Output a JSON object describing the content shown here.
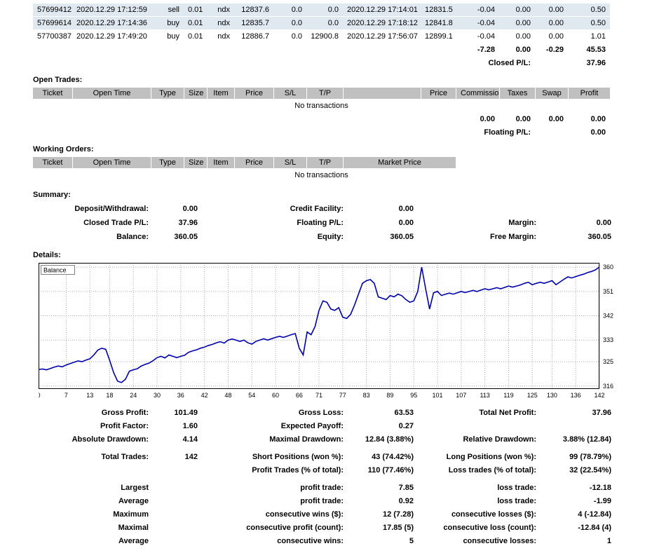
{
  "colors": {
    "header_bg": "#c0c0c0",
    "row_shade": "#e0e8f0",
    "balance_line": "#0000B0",
    "grid_line": "#aaaaaa"
  },
  "closed_trades": {
    "rows": [
      {
        "ticket": "57699412",
        "open_time": "2020.12.29 17:12:59",
        "type": "sell",
        "size": "0.01",
        "item": "ndx",
        "price": "12837.6",
        "sl": "0.0",
        "tp": "0.0",
        "close_time": "2020.12.29 17:14:01",
        "close_price": "12831.5",
        "commission": "-0.04",
        "taxes": "0.00",
        "swap": "0.00",
        "profit": "0.50"
      },
      {
        "ticket": "57699614",
        "open_time": "2020.12.29 17:14:36",
        "type": "buy",
        "size": "0.01",
        "item": "ndx",
        "price": "12835.7",
        "sl": "0.0",
        "tp": "0.0",
        "close_time": "2020.12.29 17:18:12",
        "close_price": "12841.8",
        "commission": "-0.04",
        "taxes": "0.00",
        "swap": "0.00",
        "profit": "0.50"
      },
      {
        "ticket": "57700387",
        "open_time": "2020.12.29 17:49:20",
        "type": "buy",
        "size": "0.01",
        "item": "ndx",
        "price": "12886.7",
        "sl": "0.0",
        "tp": "12900.8",
        "close_time": "2020.12.29 17:56:07",
        "close_price": "12899.1",
        "commission": "-0.04",
        "taxes": "0.00",
        "swap": "0.00",
        "profit": "1.01"
      }
    ],
    "totals": {
      "commission": "-7.28",
      "taxes": "0.00",
      "swap": "-0.29",
      "profit": "45.53"
    },
    "closed_pl_label": "Closed P/L:",
    "closed_pl_value": "37.96"
  },
  "open_trades": {
    "title": "Open Trades:",
    "headers": [
      "Ticket",
      "Open Time",
      "Type",
      "Size",
      "Item",
      "Price",
      "S/L",
      "T/P",
      "",
      "Price",
      "Commission",
      "Taxes",
      "Swap",
      "Profit"
    ],
    "empty_text": "No transactions",
    "totals": {
      "commission": "0.00",
      "taxes": "0.00",
      "swap": "0.00",
      "profit": "0.00"
    },
    "floating_pl_label": "Floating P/L:",
    "floating_pl_value": "0.00"
  },
  "working_orders": {
    "title": "Working Orders:",
    "headers": [
      "Ticket",
      "Open Time",
      "Type",
      "Size",
      "Item",
      "Price",
      "S/L",
      "T/P",
      "Market Price"
    ],
    "empty_text": "No transactions"
  },
  "summary": {
    "title": "Summary:",
    "rows": [
      {
        "c1": {
          "label": "Deposit/Withdrawal:",
          "value": "0.00"
        },
        "c2": {
          "label": "Credit Facility:",
          "value": "0.00"
        }
      },
      {
        "c1": {
          "label": "Closed Trade P/L:",
          "value": "37.96"
        },
        "c2": {
          "label": "Floating P/L:",
          "value": "0.00"
        },
        "c3": {
          "label": "Margin:",
          "value": "0.00"
        }
      },
      {
        "c1": {
          "label": "Balance:",
          "value": "360.05"
        },
        "c2": {
          "label": "Equity:",
          "value": "360.05"
        },
        "c3": {
          "label": "Free Margin:",
          "value": "360.05"
        }
      }
    ]
  },
  "details": {
    "title": "Details:"
  },
  "chart_data": {
    "type": "line",
    "series_label": "Balance",
    "title": "",
    "xlabel": "",
    "ylabel": "",
    "grid": true,
    "y_axis_side": "right",
    "x_ticks": [
      0,
      7,
      13,
      18,
      24,
      30,
      36,
      42,
      48,
      54,
      60,
      66,
      71,
      77,
      83,
      89,
      95,
      101,
      107,
      113,
      119,
      125,
      130,
      136,
      142
    ],
    "y_ticks": [
      360,
      351,
      342,
      333,
      325,
      316
    ],
    "xlim": [
      0,
      142
    ],
    "ylim": [
      314.9,
      361.6
    ],
    "line_color": "#0000B0",
    "values": [
      322.1,
      322.3,
      322.0,
      322.5,
      323.0,
      323.4,
      323.1,
      323.8,
      324.3,
      324.8,
      325.3,
      325.0,
      325.6,
      326.1,
      327.5,
      329.3,
      330.0,
      329.6,
      325.5,
      321.0,
      317.8,
      317.3,
      318.5,
      321.5,
      322.0,
      322.4,
      323.4,
      324.0,
      324.5,
      325.4,
      326.5,
      327.0,
      326.4,
      327.5,
      327.0,
      326.5,
      327.0,
      327.4,
      328.5,
      329.0,
      329.4,
      330.0,
      330.4,
      331.0,
      331.4,
      332.0,
      332.4,
      331.9,
      333.0,
      333.4,
      333.0,
      332.5,
      333.0,
      332.0,
      331.5,
      332.5,
      333.0,
      333.5,
      333.0,
      333.5,
      334.0,
      334.4,
      334.0,
      334.5,
      335.0,
      335.4,
      330.0,
      327.5,
      336.0,
      335.0,
      338.0,
      344.0,
      347.5,
      347.0,
      344.5,
      344.0,
      345.0,
      341.5,
      341.0,
      342.5,
      346.0,
      350.0,
      354.0,
      355.0,
      355.4,
      354.0,
      349.0,
      348.5,
      348.0,
      349.5,
      349.0,
      350.0,
      349.4,
      348.0,
      347.0,
      347.5,
      351.0,
      360.0,
      352.0,
      344.5,
      350.5,
      351.0,
      349.5,
      350.0,
      350.4,
      350.0,
      350.5,
      351.0,
      350.6,
      351.0,
      351.4,
      351.0,
      351.5,
      352.0,
      351.6,
      352.0,
      352.4,
      352.0,
      352.5,
      353.0,
      352.6,
      353.0,
      353.4,
      354.0,
      354.4,
      353.5,
      354.0,
      354.4,
      354.0,
      354.5,
      355.0,
      353.5,
      354.5,
      355.5,
      356.4,
      356.0,
      356.5,
      357.0,
      357.4,
      358.0,
      358.4,
      359.0,
      360.05
    ]
  },
  "stats": {
    "rows": [
      {
        "c1": {
          "label": "Gross Profit:",
          "value": "101.49"
        },
        "c2": {
          "label": "Gross Loss:",
          "value": "63.53"
        },
        "c3": {
          "label": "Total Net Profit:",
          "value": "37.96"
        }
      },
      {
        "c1": {
          "label": "Profit Factor:",
          "value": "1.60"
        },
        "c2": {
          "label": "Expected Payoff:",
          "value": "0.27"
        }
      },
      {
        "c1": {
          "label": "Absolute Drawdown:",
          "value": "4.14"
        },
        "c2": {
          "label": "Maximal Drawdown:",
          "value": "12.84 (3.88%)"
        },
        "c3": {
          "label": "Relative Drawdown:",
          "value": "3.88% (12.84)"
        }
      },
      {
        "gap": true
      },
      {
        "c1": {
          "label": "Total Trades:",
          "value": "142"
        },
        "c2": {
          "label": "Short Positions (won %):",
          "value": "43 (74.42%)"
        },
        "c3": {
          "label": "Long Positions (won %):",
          "value": "99 (78.79%)"
        }
      },
      {
        "c2": {
          "label": "Profit Trades (% of total):",
          "value": "110 (77.46%)"
        },
        "c3": {
          "label": "Loss trades (% of total):",
          "value": "32 (22.54%)"
        }
      },
      {
        "gap": true
      },
      {
        "c1": {
          "label": "Largest",
          "value": ""
        },
        "c2": {
          "label": "profit trade:",
          "value": "7.85"
        },
        "c3": {
          "label": "loss trade:",
          "value": "-12.18"
        }
      },
      {
        "c1": {
          "label": "Average",
          "value": ""
        },
        "c2": {
          "label": "profit trade:",
          "value": "0.92"
        },
        "c3": {
          "label": "loss trade:",
          "value": "-1.99"
        }
      },
      {
        "c1": {
          "label": "Maximum",
          "value": ""
        },
        "c2": {
          "label": "consecutive wins ($):",
          "value": "12 (7.28)"
        },
        "c3": {
          "label": "consecutive losses ($):",
          "value": "4 (-12.84)"
        }
      },
      {
        "c1": {
          "label": "Maximal",
          "value": ""
        },
        "c2": {
          "label": "consecutive profit (count):",
          "value": "17.85 (5)"
        },
        "c3": {
          "label": "consecutive loss (count):",
          "value": "-12.84 (4)"
        }
      },
      {
        "c1": {
          "label": "Average",
          "value": ""
        },
        "c2": {
          "label": "consecutive wins:",
          "value": "5"
        },
        "c3": {
          "label": "consecutive losses:",
          "value": "1"
        }
      }
    ]
  }
}
